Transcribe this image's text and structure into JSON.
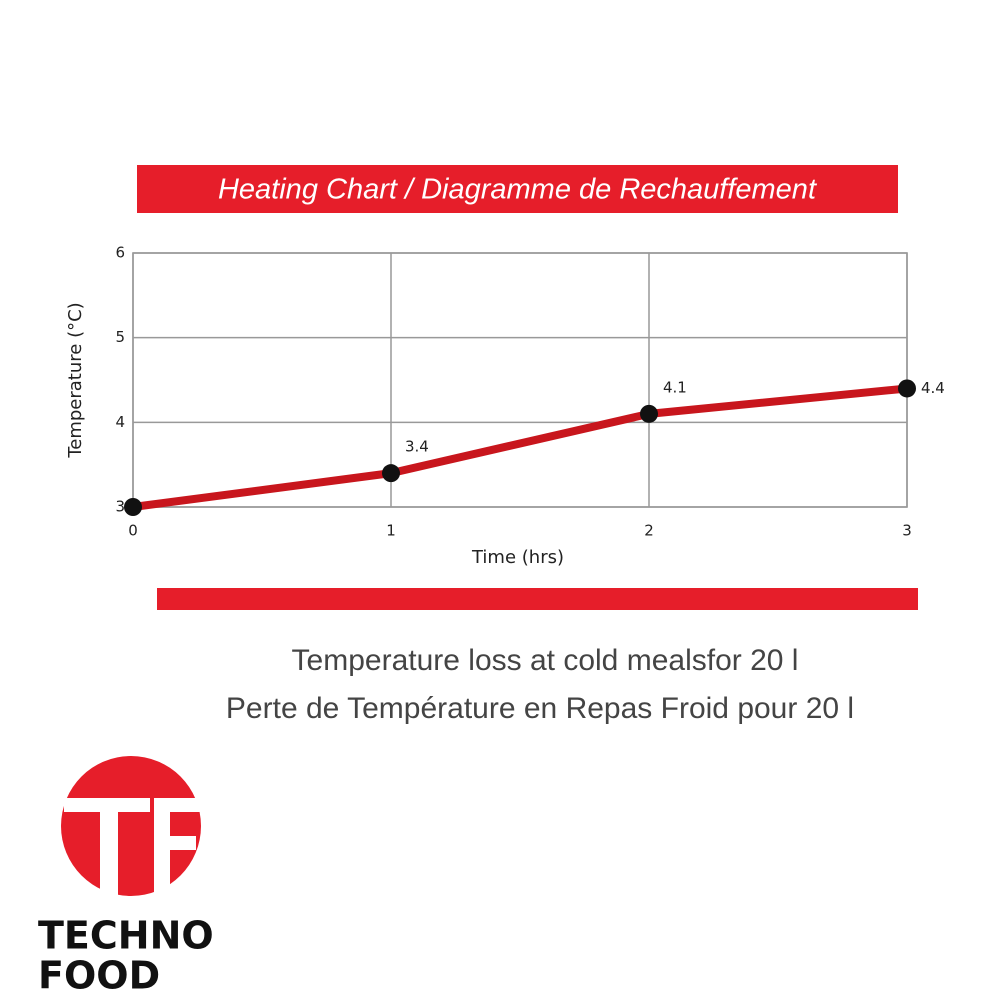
{
  "chart_data": {
    "type": "line",
    "title": "Heating Chart / Diagramme de Rechauffement",
    "x": [
      0,
      1,
      2,
      3
    ],
    "values": [
      3,
      3.4,
      4.1,
      4.4
    ],
    "value_labels": [
      null,
      "3.4",
      "4.1",
      "4.4"
    ],
    "color": "#c8161d",
    "xlabel": "Time (hrs)",
    "ylabel": "Temperature (°C)",
    "xlim": [
      0,
      3
    ],
    "xticks": [
      0,
      1,
      2,
      3
    ],
    "ylim": [
      3,
      6
    ],
    "yticks": [
      3,
      4,
      5,
      6
    ],
    "grid": true
  },
  "caption": [
    "Temperature loss at cold mealsfor 20 l",
    "Perte de Température en Repas Froid pour 20 l"
  ],
  "logo": {
    "line1": "TECHNO",
    "line2": "FOOD"
  }
}
